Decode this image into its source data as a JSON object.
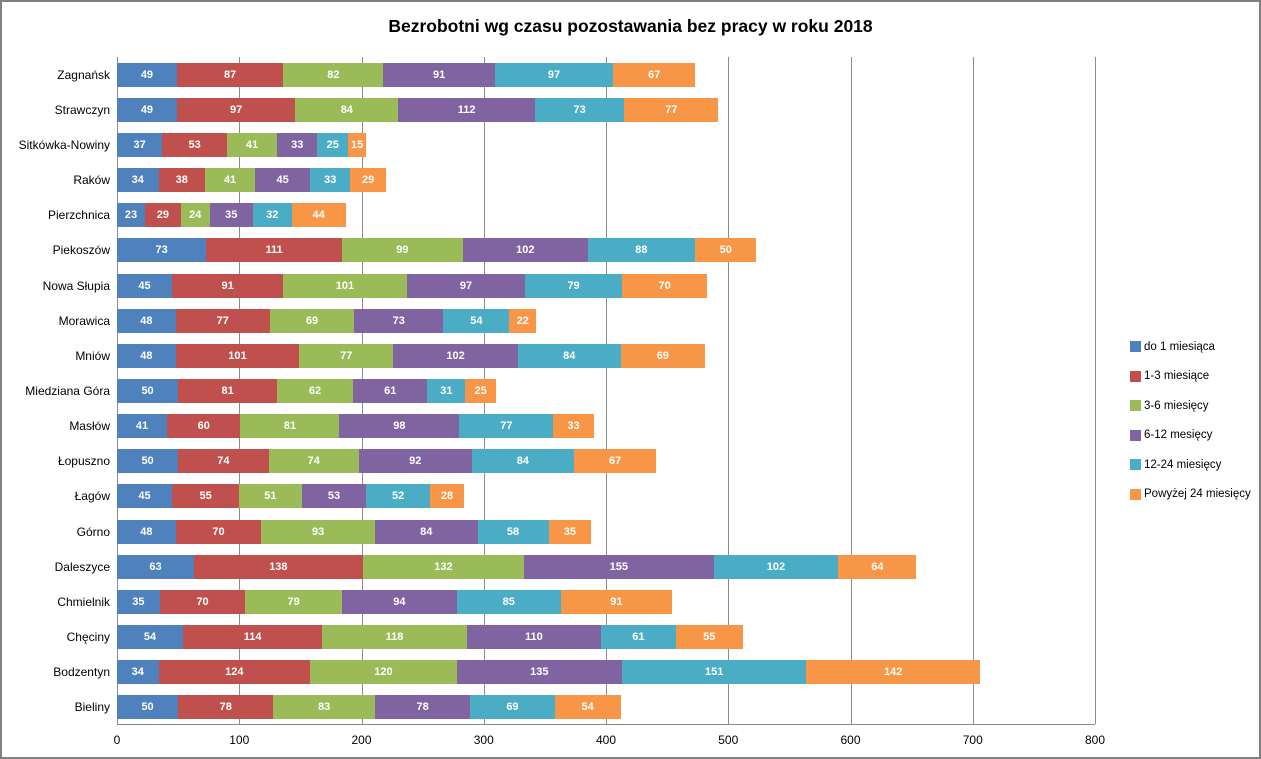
{
  "window": {
    "background": "#FFFFFF",
    "border_color": "#808080"
  },
  "chart_data": {
    "type": "bar",
    "orientation": "horizontal",
    "stacked": true,
    "title": "Bezrobotni wg czasu pozostawania bez pracy w roku 2018",
    "xlabel": "",
    "ylabel": "",
    "xlim": [
      0,
      800
    ],
    "x_ticks": [
      "0",
      "100",
      "200",
      "300",
      "400",
      "500",
      "600",
      "700",
      "800"
    ],
    "grid": "vertical",
    "gridline_color": "#8C8C8C",
    "legend_position": "right",
    "data_labels": true,
    "data_label_style": "white bold, centered inside segment",
    "categories": [
      "Zagnańsk",
      "Strawczyn",
      "Sitkówka-Nowiny",
      "Raków",
      "Pierzchnica",
      "Piekoszów",
      "Nowa Słupia",
      "Morawica",
      "Mniów",
      "Miedziana Góra",
      "Masłów",
      "Łopuszno",
      "Łagów",
      "Górno",
      "Daleszyce",
      "Chmielnik",
      "Chęciny",
      "Bodzentyn",
      "Bieliny"
    ],
    "series": [
      {
        "name": "do 1 miesiąca",
        "color": "#4F81BD",
        "values": [
          49,
          49,
          37,
          34,
          23,
          73,
          45,
          48,
          48,
          50,
          41,
          50,
          45,
          48,
          63,
          35,
          54,
          34,
          50
        ]
      },
      {
        "name": "1-3 miesiące",
        "color": "#C0504D",
        "values": [
          87,
          97,
          53,
          38,
          29,
          111,
          91,
          77,
          101,
          81,
          60,
          74,
          55,
          70,
          138,
          70,
          114,
          124,
          78
        ]
      },
      {
        "name": "3-6 miesięcy",
        "color": "#9BBB59",
        "values": [
          82,
          84,
          41,
          41,
          24,
          99,
          101,
          69,
          77,
          62,
          81,
          74,
          51,
          93,
          132,
          79,
          118,
          120,
          83
        ]
      },
      {
        "name": "6-12 mesięcy",
        "color": "#8064A2",
        "values": [
          91,
          112,
          33,
          45,
          35,
          102,
          97,
          73,
          102,
          61,
          98,
          92,
          53,
          84,
          155,
          94,
          110,
          135,
          78
        ]
      },
      {
        "name": "12-24 miesięcy",
        "color": "#4BACC6",
        "values": [
          97,
          73,
          25,
          33,
          32,
          88,
          79,
          54,
          84,
          31,
          77,
          84,
          52,
          58,
          102,
          85,
          61,
          151,
          69
        ]
      },
      {
        "name": "Powyżej 24 miesięcy",
        "color": "#F79646",
        "values": [
          67,
          77,
          15,
          29,
          44,
          50,
          70,
          22,
          69,
          25,
          33,
          67,
          28,
          35,
          64,
          91,
          55,
          142,
          54
        ]
      }
    ]
  }
}
